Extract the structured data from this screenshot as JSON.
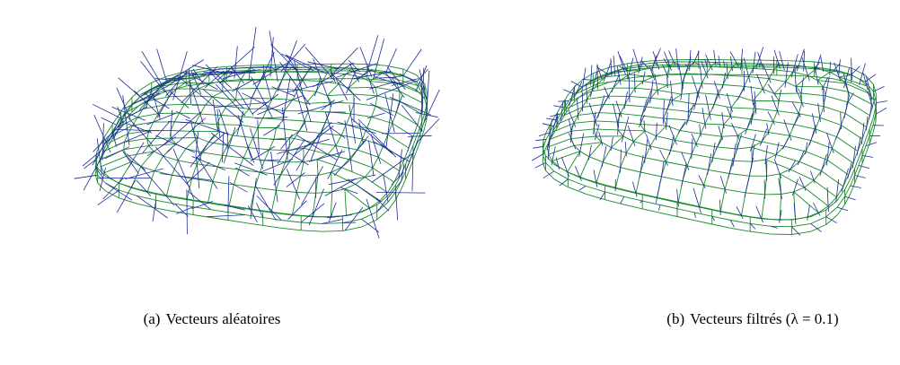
{
  "figures": [
    {
      "label": "(a)",
      "caption": "Vecteurs aléatoires"
    },
    {
      "label": "(b)",
      "caption": "Vecteurs filtrés (λ = 0.1)"
    }
  ]
}
